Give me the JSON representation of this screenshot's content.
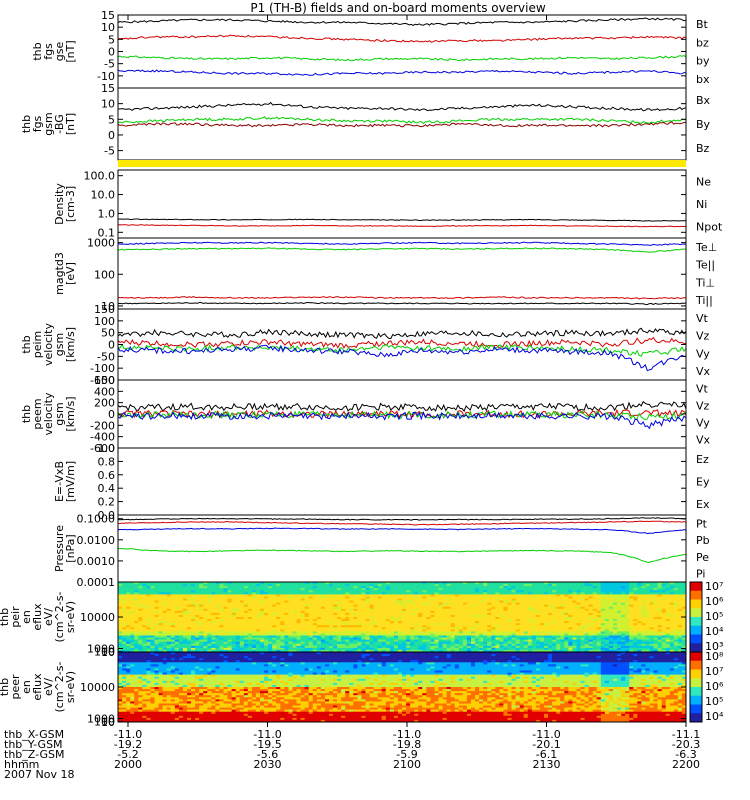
{
  "title": "P1 (TH-B) fields and on-board moments overview",
  "chart_data": [
    {
      "id": "fgs_gse",
      "type": "line",
      "ylabel": [
        "thb",
        "fgs",
        "gse",
        "[nT]"
      ],
      "yticks": [
        "15",
        "10",
        "5",
        "0",
        "-5",
        "-10"
      ],
      "ylim": [
        -15,
        15
      ],
      "series": [
        {
          "name": "Bt",
          "color": "#000000",
          "values": [
            12,
            12.5,
            13,
            13,
            12.5,
            12,
            12,
            11.5,
            11,
            11.5,
            12,
            12,
            12.5,
            13,
            13.5,
            13
          ]
        },
        {
          "name": "bz",
          "color": "#d40000",
          "values": [
            5,
            6,
            6,
            6.5,
            6,
            5.5,
            5,
            4.5,
            4,
            4.5,
            4.5,
            5,
            5.5,
            5.5,
            6,
            5.5
          ]
        },
        {
          "name": "by",
          "color": "#00d000",
          "values": [
            -2,
            -2.5,
            -3,
            -3,
            -2.5,
            -3,
            -3.5,
            -3,
            -3,
            -3.5,
            -3,
            -3,
            -2.5,
            -3,
            -2.5,
            -2
          ]
        },
        {
          "name": "bx",
          "color": "#0000e0",
          "values": [
            -8,
            -8,
            -8.5,
            -9,
            -9,
            -9.5,
            -9,
            -9,
            -8.5,
            -8.5,
            -8,
            -8.5,
            -9,
            -8.5,
            -8,
            -9
          ]
        }
      ]
    },
    {
      "id": "fgs_gsm",
      "type": "line",
      "ylabel": [
        "thb",
        "fgs",
        "gsm",
        "-BG",
        "[nT]"
      ],
      "yticks": [
        "15",
        "10",
        "5",
        "0",
        "-5"
      ],
      "ylim": [
        -8,
        15
      ],
      "series": [
        {
          "name": "Bx",
          "color": "#000000",
          "values": [
            8,
            8.5,
            9,
            9.5,
            10,
            9,
            8.5,
            8.5,
            8,
            8.5,
            9,
            9.5,
            9,
            8.5,
            8,
            8.5
          ]
        },
        {
          "name": "By",
          "color": "#00d000",
          "values": [
            4,
            4.5,
            5,
            5,
            5.5,
            5,
            4.5,
            4.5,
            4,
            4.5,
            5,
            5,
            5,
            4.5,
            4,
            5
          ]
        },
        {
          "name": "Bz",
          "color": "#8b0000",
          "values": [
            3,
            3.5,
            3.5,
            3,
            3,
            3.5,
            3,
            3,
            3,
            3.5,
            3,
            3,
            3,
            3,
            3.5,
            4
          ]
        }
      ]
    },
    {
      "id": "density",
      "type": "line",
      "log": true,
      "ylabel": [
        "Density",
        "[cm-3]"
      ],
      "yticks": [
        "100.0",
        "10.0",
        "1.0",
        "0.1"
      ],
      "ylim": [
        0.05,
        200
      ],
      "series": [
        {
          "name": "Ne",
          "color": "#d40000",
          "values": [
            0.25,
            0.24,
            0.23,
            0.22,
            0.22,
            0.23,
            0.22,
            0.22,
            0.21,
            0.22,
            0.22,
            0.23,
            0.22,
            0.21,
            0.2,
            0.21
          ]
        },
        {
          "name": "Ni",
          "color": "#000000",
          "values": [
            0.5,
            0.48,
            0.47,
            0.46,
            0.47,
            0.48,
            0.46,
            0.45,
            0.44,
            0.45,
            0.46,
            0.47,
            0.45,
            0.43,
            0.4,
            0.42
          ]
        },
        {
          "name": "Npot",
          "color": "#0000e0",
          "values": []
        }
      ]
    },
    {
      "id": "temperature",
      "type": "line",
      "log": true,
      "ylabel": [
        "magtd3",
        "[eV]"
      ],
      "yticks": [
        "1000",
        "100",
        "10"
      ],
      "ylim": [
        8,
        1400
      ],
      "series": [
        {
          "name": "Te⊥",
          "color": "#d40000",
          "values": [
            18,
            18,
            19,
            18,
            18,
            19,
            19,
            18,
            18,
            18,
            19,
            18,
            18,
            18,
            17,
            18
          ]
        },
        {
          "name": "Te||",
          "color": "#000000",
          "values": [
            12,
            12,
            12.5,
            12,
            12,
            12.5,
            12,
            12,
            12,
            12,
            12,
            12,
            12,
            12,
            11.5,
            12
          ]
        },
        {
          "name": "Ti⊥",
          "color": "#0000e0",
          "values": [
            900,
            950,
            1000,
            980,
            1000,
            950,
            900,
            950,
            1000,
            950,
            980,
            1000,
            950,
            900,
            850,
            900
          ]
        },
        {
          "name": "Ti||",
          "color": "#00d000",
          "values": [
            600,
            620,
            650,
            640,
            660,
            620,
            600,
            640,
            650,
            620,
            650,
            660,
            640,
            600,
            500,
            620
          ]
        }
      ]
    },
    {
      "id": "peim_velocity",
      "type": "line",
      "ylabel": [
        "thb",
        "peim",
        "velocity",
        "gsm",
        "[km/s]"
      ],
      "yticks": [
        "150",
        "100",
        "50",
        "0",
        "-50",
        "-100",
        "-150"
      ],
      "ylim": [
        -150,
        150
      ],
      "series": [
        {
          "name": "Vt",
          "color": "#000000",
          "values": [
            40,
            50,
            45,
            40,
            55,
            45,
            40,
            35,
            45,
            50,
            40,
            45,
            50,
            45,
            60,
            50
          ]
        },
        {
          "name": "Vz",
          "color": "#d40000",
          "values": [
            10,
            5,
            0,
            5,
            10,
            0,
            -5,
            5,
            10,
            5,
            0,
            5,
            10,
            0,
            20,
            10
          ]
        },
        {
          "name": "Vy",
          "color": "#00d000",
          "values": [
            -10,
            -15,
            -20,
            -10,
            -15,
            -20,
            -25,
            -10,
            -15,
            -20,
            -10,
            -15,
            -20,
            -25,
            -40,
            -20
          ]
        },
        {
          "name": "Vx",
          "color": "#0000e0",
          "values": [
            -20,
            -25,
            -30,
            -20,
            -15,
            -25,
            -30,
            -45,
            -25,
            -30,
            -20,
            -25,
            -30,
            -35,
            -100,
            -40
          ]
        }
      ]
    },
    {
      "id": "peem_velocity",
      "type": "line",
      "ylabel": [
        "thb",
        "peem",
        "velocity",
        "gsm",
        "[km/s]"
      ],
      "yticks": [
        "600",
        "400",
        "200",
        "0",
        "-200",
        "-400",
        "-600"
      ],
      "ylim": [
        -600,
        600
      ],
      "series": [
        {
          "name": "Vt",
          "color": "#000000",
          "values": [
            120,
            110,
            130,
            120,
            140,
            120,
            110,
            130,
            120,
            110,
            120,
            130,
            120,
            110,
            180,
            140
          ]
        },
        {
          "name": "Vz",
          "color": "#d40000",
          "values": [
            0,
            10,
            -10,
            0,
            10,
            -5,
            0,
            10,
            -10,
            0,
            5,
            -5,
            0,
            10,
            20,
            0
          ]
        },
        {
          "name": "Vy",
          "color": "#00d000",
          "values": [
            -10,
            -20,
            -10,
            -20,
            -10,
            -20,
            -10,
            -20,
            -10,
            -20,
            -10,
            -20,
            -10,
            -20,
            -40,
            -20
          ]
        },
        {
          "name": "Vx",
          "color": "#0000e0",
          "values": [
            -30,
            -40,
            -30,
            -40,
            -30,
            -40,
            -30,
            -40,
            -30,
            -40,
            -30,
            -40,
            -30,
            -40,
            -200,
            -60
          ]
        }
      ]
    },
    {
      "id": "efield",
      "type": "line",
      "ylabel": [
        "E=-VxB",
        "[mV/m]"
      ],
      "yticks": [
        "1.0",
        "0.8",
        "0.6",
        "0.4",
        "0.2",
        "0.0"
      ],
      "ylim": [
        0,
        1
      ],
      "series": [
        {
          "name": "Ez",
          "color": "#d40000",
          "values": []
        },
        {
          "name": "Ey",
          "color": "#00d000",
          "values": []
        },
        {
          "name": "Ex",
          "color": "#0000e0",
          "values": []
        }
      ]
    },
    {
      "id": "pressure",
      "type": "line",
      "log": true,
      "ylabel": [
        "Pressure",
        "[nPa]"
      ],
      "yticks": [
        "0.1000",
        "0.0100",
        "0.0010",
        "0.0001"
      ],
      "ylim": [
        0.0001,
        0.15
      ],
      "series": [
        {
          "name": "Pt",
          "color": "#000000",
          "values": [
            0.09,
            0.095,
            0.1,
            0.1,
            0.098,
            0.095,
            0.09,
            0.09,
            0.088,
            0.09,
            0.092,
            0.095,
            0.095,
            0.1,
            0.11,
            0.1
          ]
        },
        {
          "name": "Pb",
          "color": "#d40000",
          "values": [
            0.06,
            0.065,
            0.07,
            0.07,
            0.065,
            0.06,
            0.058,
            0.055,
            0.052,
            0.055,
            0.058,
            0.062,
            0.065,
            0.07,
            0.075,
            0.07
          ]
        },
        {
          "name": "Pe",
          "color": "#00d000",
          "values": [
            0.004,
            0.003,
            0.0028,
            0.003,
            0.0032,
            0.003,
            0.0028,
            0.003,
            0.0029,
            0.0028,
            0.003,
            0.0031,
            0.003,
            0.0025,
            0.0008,
            0.002
          ]
        },
        {
          "name": "Pi",
          "color": "#0000e0",
          "values": [
            0.03,
            0.032,
            0.034,
            0.033,
            0.035,
            0.034,
            0.032,
            0.033,
            0.032,
            0.031,
            0.033,
            0.034,
            0.032,
            0.03,
            0.02,
            0.03
          ]
        }
      ]
    },
    {
      "id": "peir_spectrogram",
      "type": "heatmap",
      "ylabel": [
        "thb",
        "peir",
        "en",
        "eflux",
        "eV/",
        "(cm^2-s-",
        "sr-eV)"
      ],
      "yticks": [
        "10000",
        "1000",
        "100",
        "10"
      ],
      "ylim": [
        8,
        20000
      ],
      "colorbar_ticks": [
        "10^7",
        "10^6",
        "10^5",
        "10^4",
        "10^3"
      ]
    },
    {
      "id": "peer_spectrogram",
      "type": "heatmap",
      "ylabel": [
        "thb",
        "peer",
        "en",
        "eflux",
        "eV/",
        "(cm^2-s-",
        "sr-eV)"
      ],
      "yticks": [
        "10000",
        "1000",
        "100",
        "10"
      ],
      "ylim": [
        8,
        20000
      ],
      "colorbar_ticks": [
        "10^8",
        "10^7",
        "10^6",
        "10^5",
        "10^4"
      ]
    }
  ],
  "time_axis": {
    "rows": [
      {
        "label": "thb_X-GSM",
        "values": [
          "-11.0",
          "-11.0",
          "-11.0",
          "-11.0",
          "-11.1"
        ]
      },
      {
        "label": "thb_Y-GSM",
        "values": [
          "-19.2",
          "-19.5",
          "-19.8",
          "-20.1",
          "-20.3"
        ]
      },
      {
        "label": "thb_Z-GSM",
        "values": [
          "-5.2",
          "-5.6",
          "-5.9",
          "-6.1",
          "-6.3"
        ]
      },
      {
        "label": "hhmm",
        "values": [
          "2000",
          "2030",
          "2100",
          "2130",
          "2200"
        ]
      }
    ],
    "date": "2007 Nov 18"
  }
}
